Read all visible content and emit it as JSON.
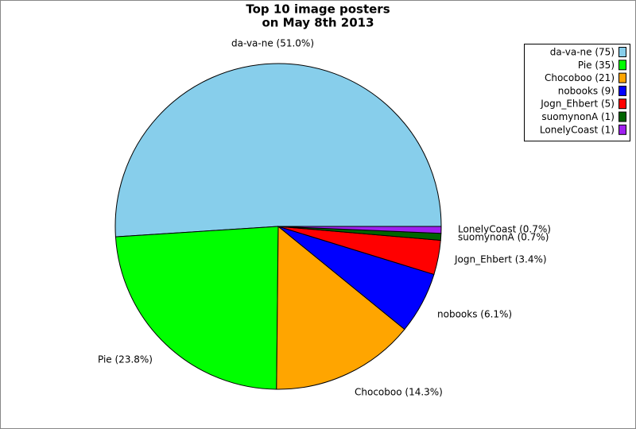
{
  "chart_data": {
    "type": "pie",
    "title": [
      "Top 10 image posters",
      "on May 8th 2013"
    ],
    "categories": [
      "da-va-ne",
      "Pie",
      "Chocoboo",
      "nobooks",
      "Jogn_Ehbert",
      "suomynonA",
      "LonelyCoast"
    ],
    "values": [
      75,
      35,
      21,
      9,
      5,
      1,
      1
    ],
    "colors": [
      "#87ceeb",
      "#00ff00",
      "#ffa500",
      "#0000ff",
      "#ff0000",
      "#006400",
      "#a020f0"
    ],
    "slice_labels": [
      "da-va-ne (51.0%)",
      "Pie (23.8%)",
      "Chocoboo (14.3%)",
      "nobooks (6.1%)",
      "Jogn_Ehbert (3.4%)",
      "suomynonA (0.7%)",
      "LonelyCoast (0.7%)"
    ],
    "legend_labels": [
      "da-va-ne (75)",
      "Pie (35)",
      "Chocoboo (21)",
      "nobooks (9)",
      "Jogn_Ehbert (5)",
      "suomynonA (1)",
      "LonelyCoast (1)"
    ],
    "legend": "upper right"
  }
}
